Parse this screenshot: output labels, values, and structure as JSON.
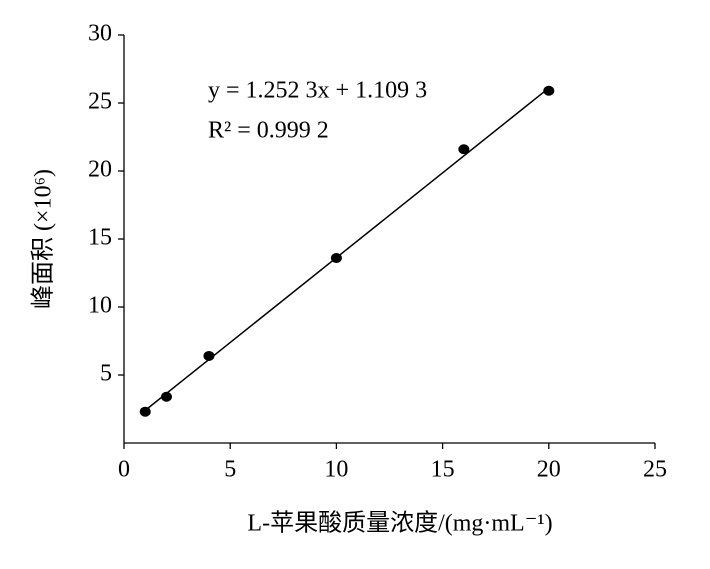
{
  "chart_data": {
    "type": "scatter",
    "x_label": "L-苹果酸质量浓度/(mg·mL⁻¹)",
    "y_label": "峰面积 (×10⁶)",
    "annotations": [
      "y = 1.252 3x + 1.109 3",
      "R² = 0.999 2"
    ],
    "series": [
      {
        "color": "#000000",
        "x": [
          1,
          2,
          4,
          10,
          16,
          20
        ],
        "values": [
          2.3,
          3.4,
          6.4,
          13.6,
          21.6,
          25.9
        ]
      }
    ],
    "fit_line": {
      "color": "#000000",
      "x": [
        1,
        20
      ],
      "values": [
        2.4,
        26.1
      ]
    },
    "xlim": [
      0,
      25
    ],
    "xticks": [
      0,
      5,
      10,
      15,
      20,
      25
    ],
    "ylim": [
      0,
      30
    ],
    "yticks": [
      5,
      10,
      15,
      20,
      25,
      30
    ],
    "grid": false
  }
}
